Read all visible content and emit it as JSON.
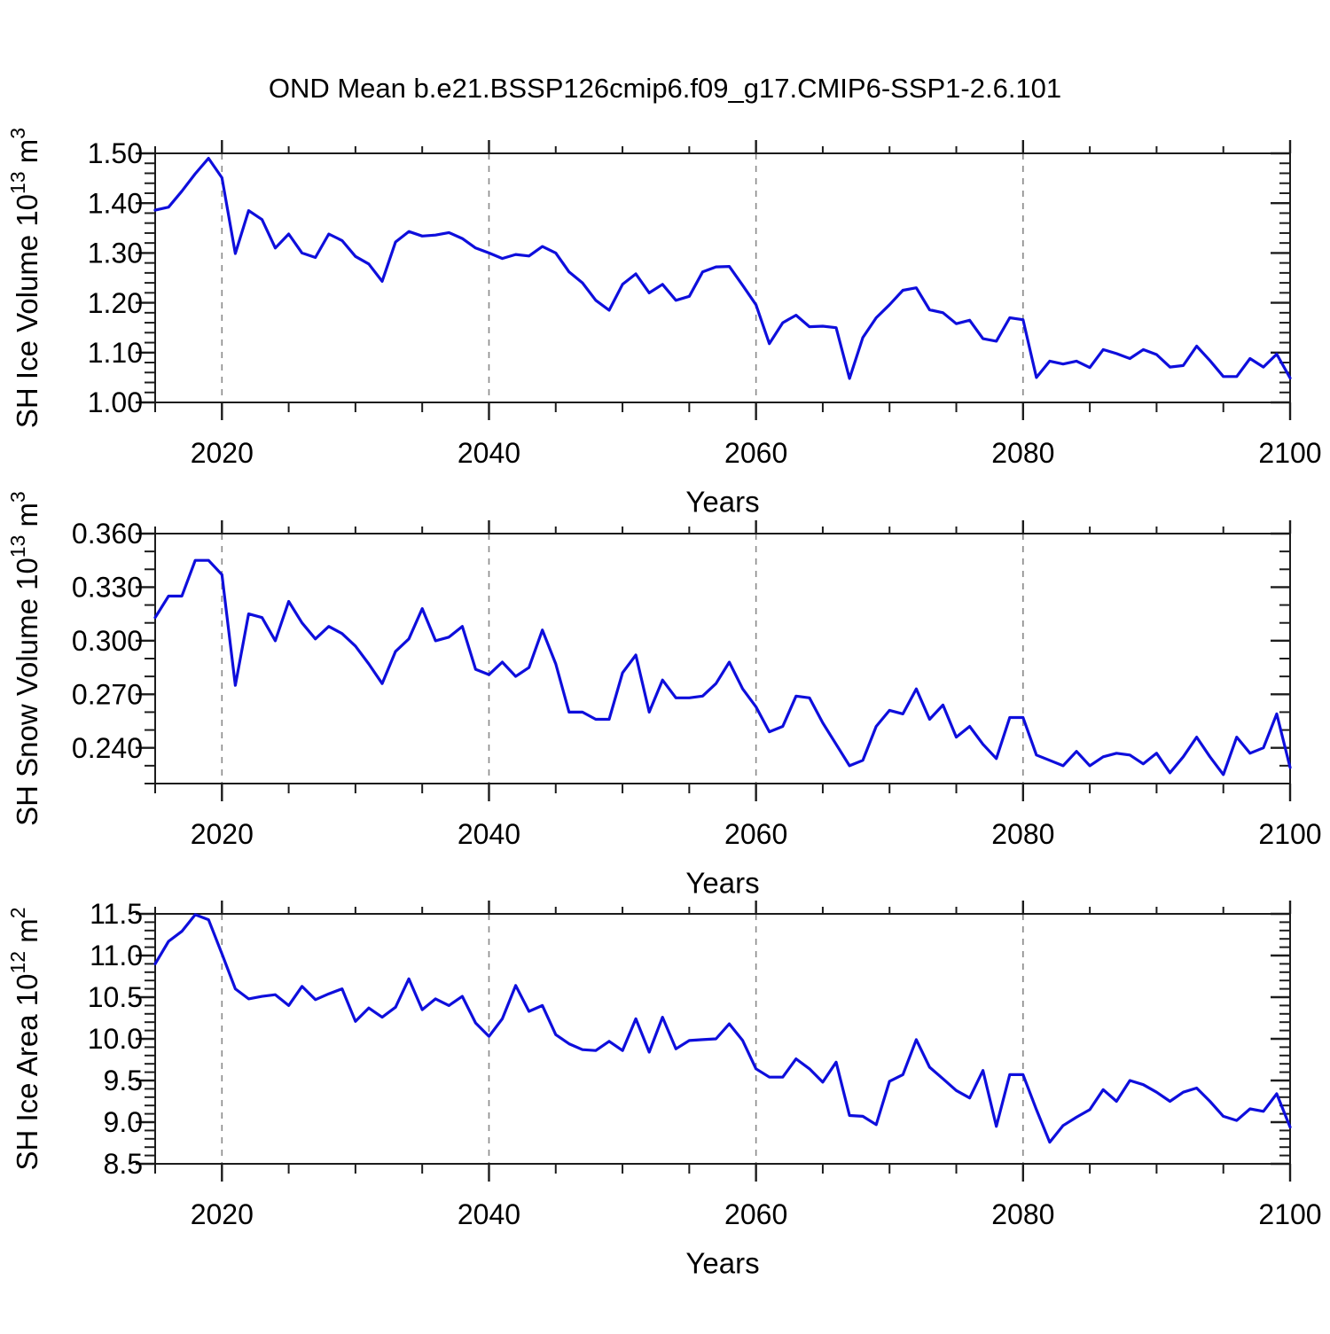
{
  "title": "OND Mean b.e21.BSSP126cmip6.f09_g17.CMIP6-SSP1-2.6.101",
  "colors": {
    "line": "#0E0EDC",
    "grid": "#8A8A8A",
    "axis": "#1C1C1C",
    "text": "#000000",
    "background": "#FFFFFF"
  },
  "chart_data": [
    {
      "id": "ice-volume",
      "type": "line",
      "title": "",
      "xlabel": "Years",
      "ylabel": {
        "base": "SH Ice Volume 10",
        "exp": "13",
        "unit": "m",
        "unit_exp": "3"
      },
      "legend": "none",
      "grid_x_dashed": true,
      "x_start": 2015,
      "x_end": 2100,
      "x_step": 1,
      "xlim": [
        2015,
        2100
      ],
      "ylim": [
        1.0,
        1.5
      ],
      "yticks": {
        "start": 1.0,
        "step": 0.1,
        "count": 6,
        "decimals": 2,
        "minor_step": 0.02
      },
      "xticks": {
        "major": [
          2020,
          2040,
          2060,
          2080,
          2100
        ],
        "minor_step": 5,
        "grid": [
          2020,
          2040,
          2060,
          2080
        ]
      },
      "values": [
        1.386,
        1.392,
        1.424,
        1.459,
        1.49,
        1.451,
        1.299,
        1.385,
        1.367,
        1.31,
        1.338,
        1.3,
        1.291,
        1.338,
        1.325,
        1.293,
        1.278,
        1.243,
        1.322,
        1.343,
        1.334,
        1.336,
        1.341,
        1.329,
        1.31,
        1.3,
        1.289,
        1.297,
        1.294,
        1.313,
        1.3,
        1.262,
        1.24,
        1.205,
        1.185,
        1.237,
        1.258,
        1.22,
        1.237,
        1.205,
        1.213,
        1.262,
        1.272,
        1.273,
        1.235,
        1.196,
        1.118,
        1.16,
        1.175,
        1.152,
        1.153,
        1.15,
        1.048,
        1.13,
        1.17,
        1.196,
        1.225,
        1.23,
        1.186,
        1.18,
        1.158,
        1.165,
        1.128,
        1.123,
        1.17,
        1.166,
        1.05,
        1.083,
        1.077,
        1.083,
        1.07,
        1.106,
        1.098,
        1.088,
        1.106,
        1.096,
        1.071,
        1.074,
        1.113,
        1.084,
        1.052,
        1.052,
        1.088,
        1.071,
        1.097,
        1.049
      ]
    },
    {
      "id": "snow-volume",
      "type": "line",
      "title": "",
      "xlabel": "Years",
      "ylabel": {
        "base": "SH Snow Volume 10",
        "exp": "13",
        "unit": "m",
        "unit_exp": "3"
      },
      "legend": "none",
      "grid_x_dashed": true,
      "x_start": 2015,
      "x_end": 2100,
      "x_step": 1,
      "xlim": [
        2015,
        2100
      ],
      "ylim": [
        0.22,
        0.36
      ],
      "yticks": {
        "start": 0.24,
        "step": 0.03,
        "count": 5,
        "decimals": 3,
        "minor_step": 0.01
      },
      "xticks": {
        "major": [
          2020,
          2040,
          2060,
          2080,
          2100
        ],
        "minor_step": 5,
        "grid": [
          2020,
          2040,
          2060,
          2080
        ]
      },
      "values": [
        0.313,
        0.325,
        0.325,
        0.345,
        0.345,
        0.337,
        0.275,
        0.315,
        0.313,
        0.3,
        0.322,
        0.31,
        0.301,
        0.308,
        0.304,
        0.297,
        0.287,
        0.276,
        0.294,
        0.301,
        0.318,
        0.3,
        0.302,
        0.308,
        0.284,
        0.281,
        0.288,
        0.28,
        0.285,
        0.306,
        0.287,
        0.26,
        0.26,
        0.256,
        0.256,
        0.282,
        0.292,
        0.26,
        0.278,
        0.268,
        0.268,
        0.269,
        0.276,
        0.288,
        0.273,
        0.263,
        0.249,
        0.252,
        0.269,
        0.268,
        0.254,
        0.242,
        0.23,
        0.233,
        0.252,
        0.261,
        0.259,
        0.273,
        0.256,
        0.264,
        0.246,
        0.252,
        0.242,
        0.234,
        0.257,
        0.257,
        0.236,
        0.233,
        0.23,
        0.238,
        0.23,
        0.235,
        0.237,
        0.236,
        0.231,
        0.237,
        0.226,
        0.235,
        0.246,
        0.235,
        0.225,
        0.246,
        0.237,
        0.24,
        0.259,
        0.229
      ]
    },
    {
      "id": "ice-area",
      "type": "line",
      "title": "",
      "xlabel": "Years",
      "ylabel": {
        "base": "SH Ice Area 10",
        "exp": "12",
        "unit": "m",
        "unit_exp": "2"
      },
      "legend": "none",
      "grid_x_dashed": true,
      "x_start": 2015,
      "x_end": 2100,
      "x_step": 1,
      "xlim": [
        2015,
        2100
      ],
      "ylim": [
        8.5,
        11.5
      ],
      "yticks": {
        "start": 8.5,
        "step": 0.5,
        "count": 7,
        "decimals": 1,
        "minor_step": 0.1
      },
      "xticks": {
        "major": [
          2020,
          2040,
          2060,
          2080,
          2100
        ],
        "minor_step": 5,
        "grid": [
          2020,
          2040,
          2060,
          2080
        ]
      },
      "values": [
        10.9,
        11.17,
        11.29,
        11.49,
        11.43,
        11.02,
        10.6,
        10.48,
        10.51,
        10.53,
        10.4,
        10.63,
        10.47,
        10.54,
        10.6,
        10.21,
        10.37,
        10.26,
        10.38,
        10.72,
        10.35,
        10.48,
        10.4,
        10.51,
        10.19,
        10.03,
        10.24,
        10.64,
        10.33,
        10.4,
        10.05,
        9.94,
        9.87,
        9.86,
        9.97,
        9.86,
        10.24,
        9.84,
        10.26,
        9.88,
        9.98,
        9.99,
        10.0,
        10.18,
        9.98,
        9.64,
        9.54,
        9.54,
        9.76,
        9.64,
        9.48,
        9.72,
        9.08,
        9.07,
        8.97,
        9.49,
        9.57,
        9.99,
        9.66,
        9.52,
        9.38,
        9.29,
        9.62,
        8.95,
        9.57,
        9.57,
        9.15,
        8.76,
        8.96,
        9.06,
        9.15,
        9.39,
        9.25,
        9.5,
        9.45,
        9.36,
        9.25,
        9.36,
        9.41,
        9.25,
        9.07,
        9.02,
        9.16,
        9.13,
        9.34,
        8.94
      ]
    }
  ]
}
